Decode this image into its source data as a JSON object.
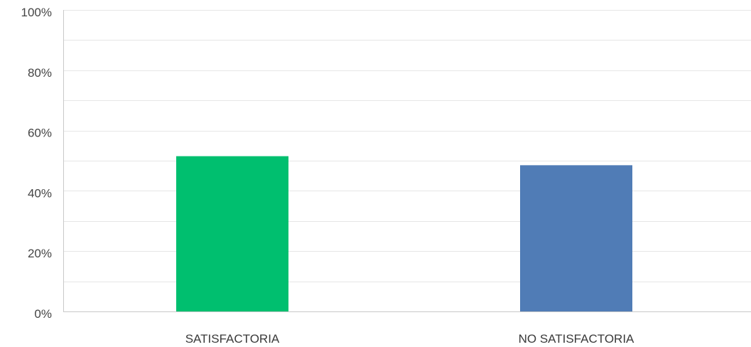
{
  "chart_data": {
    "type": "bar",
    "title": "",
    "xlabel": "",
    "ylabel": "",
    "categories": [
      "SATISFACTORIA",
      "NO SATISFACTORIA"
    ],
    "values": [
      51.5,
      48.5
    ],
    "colors": [
      "#00BF6F",
      "#507CB6"
    ],
    "ylim": [
      0,
      100
    ],
    "y_ticks": [
      0,
      20,
      40,
      60,
      80,
      100
    ],
    "y_tick_labels": [
      "0%",
      "20%",
      "40%",
      "60%",
      "80%",
      "100%"
    ],
    "minor_gridlines": [
      10,
      30,
      50,
      70,
      90
    ],
    "grid": true,
    "legend": "none"
  },
  "colors": {
    "gridline": "#e6e6e6",
    "axis": "#c8c8c8"
  }
}
